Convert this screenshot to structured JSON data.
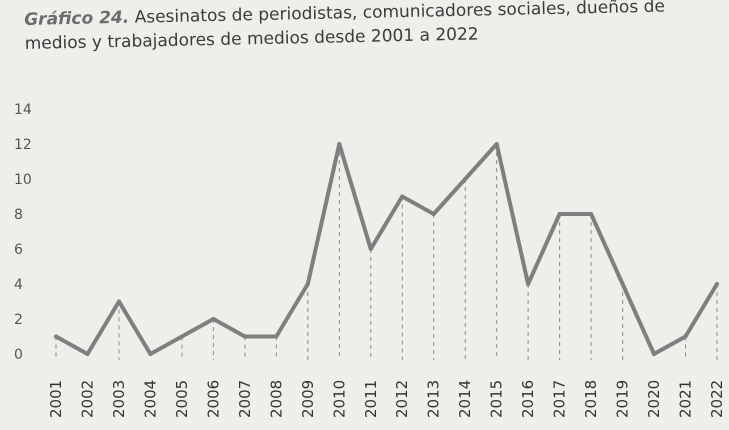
{
  "title": {
    "lead": "Gráfico 24.",
    "text": " Asesinatos de periodistas, comunicadores sociales, dueños de medios y trabajadores de medios desde 2001 a 2022"
  },
  "colors": {
    "background": "#eeeeeb",
    "line": "#7f7f7f",
    "guides": "#8a8a8a",
    "title_lead": "#6d6d6d"
  },
  "chart_data": {
    "type": "line",
    "title": "Gráfico 24. Asesinatos de periodistas, comunicadores sociales, dueños de medios y trabajadores de medios desde 2001 a 2022",
    "xlabel": "",
    "ylabel": "",
    "categories": [
      "2001",
      "2002",
      "2003",
      "2004",
      "2005",
      "2006",
      "2007",
      "2008",
      "2009",
      "2010",
      "2011",
      "2012",
      "2013",
      "2014",
      "2015",
      "2016",
      "2017",
      "2018",
      "2019",
      "2020",
      "2021",
      "2022"
    ],
    "series": [
      {
        "values": [
          1,
          0,
          3,
          0,
          1,
          2,
          1,
          1,
          4,
          12,
          6,
          9,
          8,
          10,
          12,
          4,
          8,
          8,
          4,
          0,
          1,
          4
        ]
      }
    ],
    "ylim": [
      0,
      14
    ],
    "yticks": [
      0,
      2,
      4,
      6,
      8,
      10,
      12,
      14
    ],
    "grid": false,
    "vertical_guides": "dashed",
    "legend": "none"
  }
}
